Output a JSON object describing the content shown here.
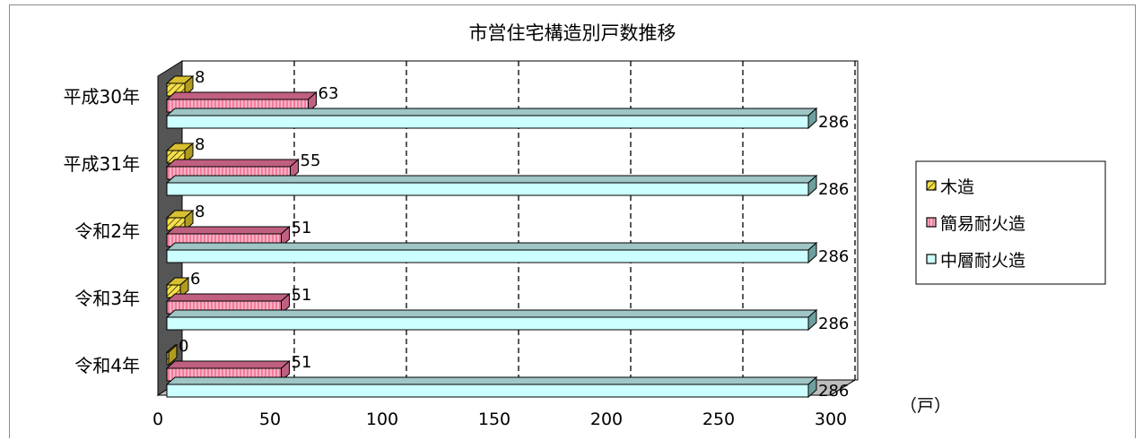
{
  "chart_data": {
    "type": "bar",
    "orientation": "horizontal",
    "style": "3d-clustered",
    "title": "市営住宅構造別戸数推移",
    "categories": [
      "平成30年",
      "平成31年",
      "令和2年",
      "令和3年",
      "令和4年"
    ],
    "series": [
      {
        "name": "木造",
        "values": [
          8,
          8,
          8,
          6,
          0
        ],
        "color": "#f5e04a"
      },
      {
        "name": "簡易耐火造",
        "values": [
          63,
          55,
          51,
          51,
          51
        ],
        "color": "#f27c9c"
      },
      {
        "name": "中層耐火造",
        "values": [
          286,
          286,
          286,
          286,
          286
        ],
        "color": "#ccffff"
      }
    ],
    "xlim": [
      0,
      300
    ],
    "x_ticks": [
      "0",
      "50",
      "100",
      "150",
      "200",
      "250",
      "300"
    ],
    "unit": "（戸）",
    "grid": "dashed-vertical",
    "legend_position": "right"
  },
  "colors": {
    "wall": "#555555",
    "floor": "#bdbdbd",
    "grid": "#000000",
    "bar_side": "#c06080",
    "bar_top_mid": "#9fc5c5",
    "bar_side_mid": "#6e9f9f"
  }
}
